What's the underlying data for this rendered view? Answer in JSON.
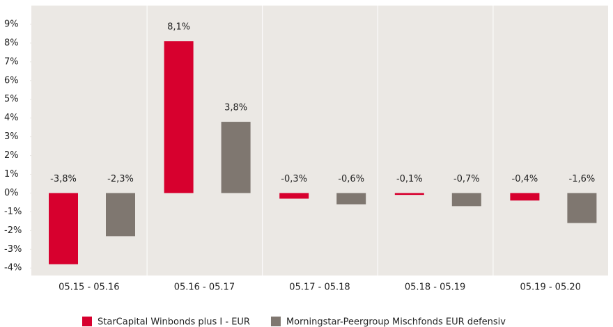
{
  "chart_data": {
    "type": "bar",
    "categories": [
      "05.15 - 05.16",
      "05.16 - 05.17",
      "05.17 - 05.18",
      "05.18 - 05.19",
      "05.19 - 05.20"
    ],
    "series": [
      {
        "name": "StarCapital Winbonds plus I - EUR",
        "color": "#d7002e",
        "values": [
          -3.8,
          8.1,
          -0.3,
          -0.1,
          -0.4
        ],
        "value_labels": [
          "-3,8%",
          "8,1%",
          "-0,3%",
          "-0,1%",
          "-0,4%"
        ]
      },
      {
        "name": "Morningstar-Peergroup Mischfonds EUR defensiv",
        "color": "#7f7770",
        "values": [
          -2.3,
          3.8,
          -0.6,
          -0.7,
          -1.6
        ],
        "value_labels": [
          "-2,3%",
          "3,8%",
          "-0,6%",
          "-0,7%",
          "-1,6%"
        ]
      }
    ],
    "ylim": [
      -4.4,
      10
    ],
    "yticks": [
      {
        "value": -4,
        "label": "-4%"
      },
      {
        "value": -3,
        "label": "-3%"
      },
      {
        "value": -2,
        "label": "-2%"
      },
      {
        "value": -1,
        "label": "-1%"
      },
      {
        "value": 0,
        "label": "0%"
      },
      {
        "value": 1,
        "label": "1%"
      },
      {
        "value": 2,
        "label": "2%"
      },
      {
        "value": 3,
        "label": "3%"
      },
      {
        "value": 4,
        "label": "4%"
      },
      {
        "value": 5,
        "label": "5%"
      },
      {
        "value": 6,
        "label": "6%"
      },
      {
        "value": 7,
        "label": "7%"
      },
      {
        "value": 8,
        "label": "8%"
      },
      {
        "value": 9,
        "label": "9%"
      }
    ],
    "legend": "bottom"
  }
}
